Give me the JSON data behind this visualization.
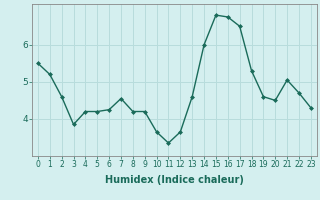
{
  "x": [
    0,
    1,
    2,
    3,
    4,
    5,
    6,
    7,
    8,
    9,
    10,
    11,
    12,
    13,
    14,
    15,
    16,
    17,
    18,
    19,
    20,
    21,
    22,
    23
  ],
  "y": [
    5.5,
    5.2,
    4.6,
    3.85,
    4.2,
    4.2,
    4.25,
    4.55,
    4.2,
    4.2,
    3.65,
    3.35,
    3.65,
    4.6,
    6.0,
    6.8,
    6.75,
    6.5,
    5.3,
    4.6,
    4.5,
    5.05,
    4.7,
    4.3
  ],
  "line_color": "#1a6b5a",
  "marker": "D",
  "marker_size": 2.0,
  "line_width": 1.0,
  "xlabel": "Humidex (Indice chaleur)",
  "xlabel_fontsize": 7,
  "bg_color": "#d4efef",
  "grid_color": "#b8dcdc",
  "axis_color": "#555555",
  "tick_color": "#1a6b5a",
  "xlim": [
    -0.5,
    23.5
  ],
  "ylim": [
    3.0,
    7.1
  ],
  "yticks": [
    4,
    5,
    6
  ],
  "xticks": [
    0,
    1,
    2,
    3,
    4,
    5,
    6,
    7,
    8,
    9,
    10,
    11,
    12,
    13,
    14,
    15,
    16,
    17,
    18,
    19,
    20,
    21,
    22,
    23
  ],
  "tick_fontsize": 5.5,
  "ylabel_fontsize": 7
}
